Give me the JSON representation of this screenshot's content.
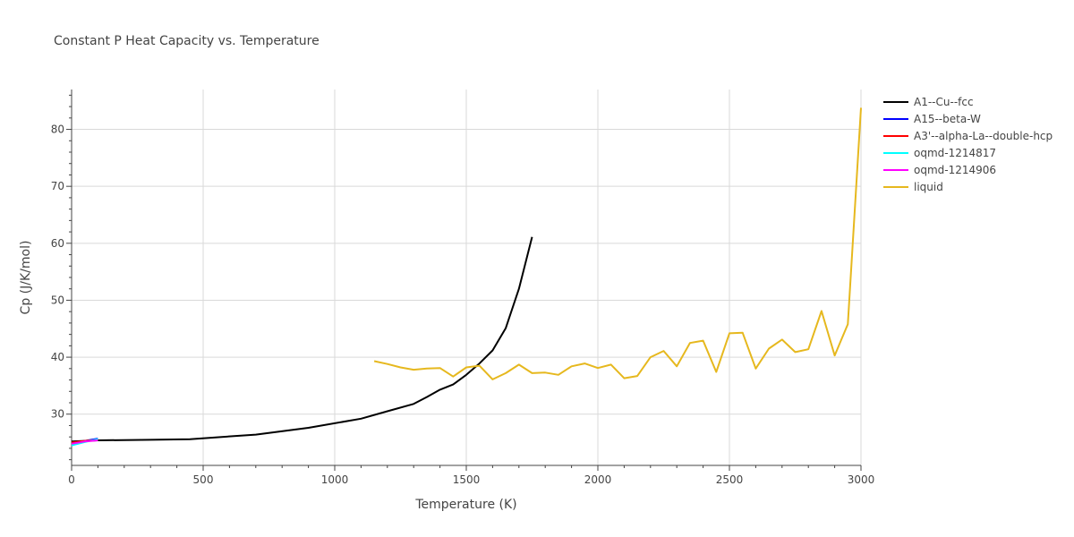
{
  "chart_data": {
    "type": "line",
    "title": "Constant P Heat Capacity vs. Temperature",
    "xlabel": "Temperature (K)",
    "ylabel": "Cp (J/K/mol)",
    "xlim": [
      0,
      3000
    ],
    "ylim": [
      21,
      87
    ],
    "xticks": [
      0,
      500,
      1000,
      1500,
      2000,
      2500,
      3000
    ],
    "yticks": [
      30,
      40,
      50,
      60,
      70,
      80
    ],
    "grid": true,
    "legend_position": "top-right",
    "series": [
      {
        "name": "A1--Cu--fcc",
        "color": "#000000",
        "x": [
          0,
          100,
          300,
          450,
          700,
          900,
          1100,
          1200,
          1300,
          1350,
          1400,
          1450,
          1500,
          1550,
          1600,
          1650,
          1700,
          1750
        ],
        "y": [
          25.2,
          25.4,
          25.5,
          25.6,
          26.4,
          27.6,
          29.2,
          30.5,
          31.8,
          33.0,
          34.3,
          35.2,
          36.9,
          38.9,
          41.2,
          45.1,
          52.0,
          61.1
        ]
      },
      {
        "name": "A15--beta-W",
        "color": "#0000ff",
        "x": [
          0,
          50,
          100
        ],
        "y": [
          24.9,
          25.3,
          25.7
        ]
      },
      {
        "name": "A3'--alpha-La--double-hcp",
        "color": "#ff0000",
        "x": [
          0,
          50,
          100
        ],
        "y": [
          25.0,
          25.3,
          25.5
        ]
      },
      {
        "name": "oqmd-1214817",
        "color": "#00ffff",
        "x": [
          0,
          50,
          100
        ],
        "y": [
          24.5,
          25.1,
          25.6
        ]
      },
      {
        "name": "oqmd-1214906",
        "color": "#ff00ff",
        "x": [
          0,
          50,
          100
        ],
        "y": [
          24.8,
          25.2,
          25.4
        ]
      },
      {
        "name": "liquid",
        "color": "#e6b81e",
        "x": [
          1150,
          1200,
          1250,
          1300,
          1350,
          1400,
          1450,
          1500,
          1550,
          1600,
          1650,
          1700,
          1750,
          1800,
          1850,
          1900,
          1950,
          2000,
          2050,
          2100,
          2150,
          2200,
          2250,
          2300,
          2350,
          2400,
          2450,
          2500,
          2550,
          2600,
          2650,
          2700,
          2750,
          2800,
          2850,
          2900,
          2950,
          3000
        ],
        "y": [
          39.3,
          38.8,
          38.2,
          37.8,
          38.0,
          38.1,
          36.6,
          38.2,
          38.5,
          36.1,
          37.2,
          38.7,
          37.2,
          37.3,
          36.9,
          38.4,
          38.9,
          38.1,
          38.7,
          36.3,
          36.7,
          40.0,
          41.1,
          38.4,
          42.5,
          42.9,
          37.4,
          44.2,
          44.3,
          38.0,
          41.5,
          43.1,
          40.9,
          41.4,
          48.1,
          40.3,
          45.8,
          83.8
        ]
      }
    ]
  }
}
